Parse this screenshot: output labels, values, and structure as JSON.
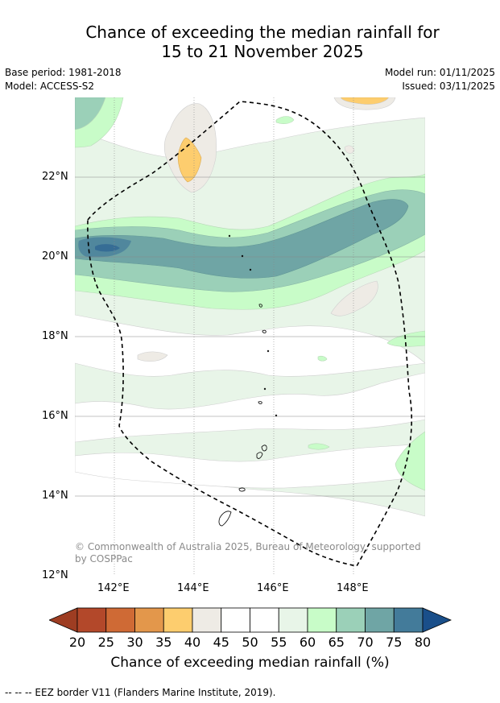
{
  "title_line1": "Chance of exceeding the median rainfall for",
  "title_line2": "15 to 21 November 2025",
  "base_period": "Base period: 1981-2018",
  "model": "Model: ACCESS-S2",
  "model_run": "Model run: 01/11/2025",
  "issued": "Issued: 03/11/2025",
  "lat_labels": [
    "22°N",
    "20°N",
    "18°N",
    "16°N",
    "14°N",
    "12°N"
  ],
  "lon_labels": [
    "142°E",
    "144°E",
    "146°E",
    "148°E"
  ],
  "copyright": "© Commonwealth of Australia 2025, Bureau of Meteorology, supported by COSPPac",
  "colorbar": {
    "ticks": [
      "20",
      "25",
      "30",
      "35",
      "40",
      "45",
      "50",
      "55",
      "60",
      "65",
      "70",
      "75",
      "80"
    ],
    "colors": [
      "#9e3d22",
      "#b3482a",
      "#cf6a35",
      "#e3974b",
      "#fdcd6e",
      "#eeebe5",
      "#ffffff",
      "#ffffff",
      "#e8f5e8",
      "#c8fcc8",
      "#9bd0b8",
      "#6fa5a5",
      "#437b9a",
      "#1a4f8a"
    ],
    "label": "Chance of exceeding median rainfall (%)"
  },
  "footnote": "--  --  -- EEZ border V11 (Flanders Marine Institute, 2019)."
}
